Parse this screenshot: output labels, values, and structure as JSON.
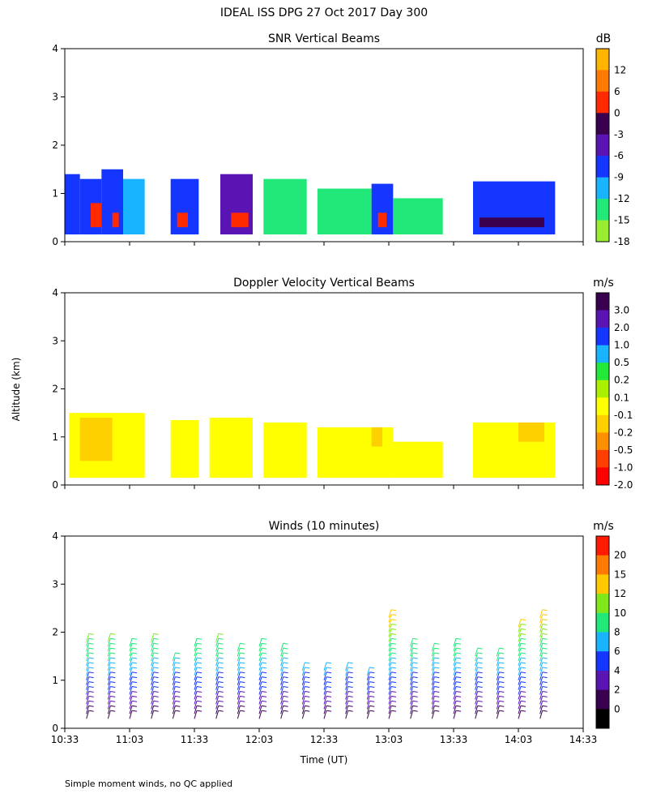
{
  "figure": {
    "title": "IDEAL ISS DPG  27 Oct 2017 Day 300",
    "shared_ylabel": "Altitude (km)",
    "shared_xlabel": "Time (UT)",
    "x_ticks": [
      "10:33",
      "11:03",
      "11:33",
      "12:03",
      "12:33",
      "13:03",
      "13:33",
      "14:03",
      "14:33"
    ],
    "y_ticks": [
      "0",
      "1",
      "2",
      "3",
      "4"
    ],
    "footnote": "Simple moment winds, no QC applied"
  },
  "chart_data": [
    {
      "type": "heatmap",
      "title": "SNR Vertical Beams",
      "ylim": [
        0,
        4
      ],
      "xlim": [
        "10:33",
        "14:33"
      ],
      "colorbar": {
        "unit": "dB",
        "labels": [
          "12",
          "6",
          "0",
          "-3",
          "-6",
          "-9",
          "-12",
          "-15",
          "-18"
        ],
        "colors": [
          "#ffb400",
          "#ff7a00",
          "#ff2a00",
          "#3a0050",
          "#5a14b4",
          "#1436ff",
          "#18b4ff",
          "#22e87a",
          "#9aee32"
        ]
      },
      "cells": [
        {
          "x0": "10:33",
          "x1": "10:40",
          "y0": 0.15,
          "y1": 1.4,
          "c": 5
        },
        {
          "x0": "10:40",
          "x1": "10:50",
          "y0": 0.15,
          "y1": 1.3,
          "c": 5
        },
        {
          "x0": "10:50",
          "x1": "11:00",
          "y0": 0.15,
          "y1": 1.5,
          "c": 5
        },
        {
          "x0": "11:00",
          "x1": "11:10",
          "y0": 0.15,
          "y1": 1.3,
          "c": 6
        },
        {
          "x0": "11:22",
          "x1": "11:35",
          "y0": 0.15,
          "y1": 1.3,
          "c": 5
        },
        {
          "x0": "11:45",
          "x1": "12:00",
          "y0": 0.15,
          "y1": 1.4,
          "c": 4
        },
        {
          "x0": "12:05",
          "x1": "12:25",
          "y0": 0.15,
          "y1": 1.3,
          "c": 7
        },
        {
          "x0": "12:30",
          "x1": "12:55",
          "y0": 0.15,
          "y1": 1.1,
          "c": 7
        },
        {
          "x0": "12:55",
          "x1": "13:05",
          "y0": 0.15,
          "y1": 1.2,
          "c": 5
        },
        {
          "x0": "13:05",
          "x1": "13:28",
          "y0": 0.15,
          "y1": 0.9,
          "c": 7
        },
        {
          "x0": "13:42",
          "x1": "14:20",
          "y0": 0.15,
          "y1": 1.25,
          "c": 5
        },
        {
          "x0": "10:45",
          "x1": "10:50",
          "y0": 0.3,
          "y1": 0.8,
          "c": 2
        },
        {
          "x0": "10:55",
          "x1": "10:58",
          "y0": 0.3,
          "y1": 0.6,
          "c": 2
        },
        {
          "x0": "11:25",
          "x1": "11:30",
          "y0": 0.3,
          "y1": 0.6,
          "c": 2
        },
        {
          "x0": "11:50",
          "x1": "11:58",
          "y0": 0.3,
          "y1": 0.6,
          "c": 2
        },
        {
          "x0": "12:58",
          "x1": "13:02",
          "y0": 0.3,
          "y1": 0.6,
          "c": 2
        },
        {
          "x0": "13:45",
          "x1": "14:15",
          "y0": 0.3,
          "y1": 0.5,
          "c": 3
        }
      ]
    },
    {
      "type": "heatmap",
      "title": "Doppler Velocity Vertical Beams",
      "ylim": [
        0,
        4
      ],
      "xlim": [
        "10:33",
        "14:33"
      ],
      "colorbar": {
        "unit": "m/s",
        "labels": [
          "3.0",
          "2.0",
          "1.0",
          "0.5",
          "0.2",
          "0.1",
          "-0.1",
          "-0.2",
          "-0.5",
          "-1.0",
          "-2.0"
        ],
        "colors": [
          "#3a0050",
          "#5a14b4",
          "#1436ff",
          "#18b4ff",
          "#22e83a",
          "#aaf000",
          "#ffff00",
          "#ffd000",
          "#ff9000",
          "#ff4000",
          "#ff0000"
        ]
      },
      "cells": [
        {
          "x0": "10:35",
          "x1": "11:10",
          "y0": 0.15,
          "y1": 1.5,
          "c": 6
        },
        {
          "x0": "10:40",
          "x1": "10:55",
          "y0": 0.5,
          "y1": 1.4,
          "c": 7
        },
        {
          "x0": "11:22",
          "x1": "11:35",
          "y0": 0.15,
          "y1": 1.35,
          "c": 6
        },
        {
          "x0": "11:40",
          "x1": "12:00",
          "y0": 0.15,
          "y1": 1.4,
          "c": 6
        },
        {
          "x0": "12:05",
          "x1": "12:25",
          "y0": 0.15,
          "y1": 1.3,
          "c": 6
        },
        {
          "x0": "12:30",
          "x1": "13:05",
          "y0": 0.15,
          "y1": 1.2,
          "c": 6
        },
        {
          "x0": "12:55",
          "x1": "13:00",
          "y0": 0.8,
          "y1": 1.2,
          "c": 7
        },
        {
          "x0": "13:05",
          "x1": "13:28",
          "y0": 0.15,
          "y1": 0.9,
          "c": 6
        },
        {
          "x0": "13:42",
          "x1": "14:20",
          "y0": 0.15,
          "y1": 1.3,
          "c": 6
        },
        {
          "x0": "14:03",
          "x1": "14:15",
          "y0": 0.9,
          "y1": 1.3,
          "c": 7
        }
      ]
    },
    {
      "type": "scatter",
      "title": "Winds (10 minutes)",
      "ylim": [
        0,
        4
      ],
      "xlim": [
        "10:33",
        "14:33"
      ],
      "colorbar": {
        "unit": "m/s",
        "labels": [
          "20",
          "15",
          "12",
          "10",
          "8",
          "6",
          "4",
          "2",
          "0"
        ],
        "colors": [
          "#ff1a00",
          "#ff7a00",
          "#ffc800",
          "#80e81a",
          "#22e87a",
          "#18b4ff",
          "#1436ff",
          "#5a14b4",
          "#3a0050",
          "#000000"
        ]
      },
      "profile_times": [
        "10:43",
        "10:53",
        "11:03",
        "11:13",
        "11:23",
        "11:33",
        "11:43",
        "11:53",
        "12:03",
        "12:13",
        "12:23",
        "12:33",
        "12:43",
        "12:53",
        "13:03",
        "13:13",
        "13:23",
        "13:33",
        "13:43",
        "13:53",
        "14:03",
        "14:13"
      ],
      "profile_tops": [
        1.9,
        1.9,
        1.8,
        1.9,
        1.5,
        1.8,
        1.9,
        1.7,
        1.8,
        1.7,
        1.3,
        1.3,
        1.3,
        1.2,
        2.4,
        1.8,
        1.7,
        1.8,
        1.6,
        1.6,
        2.2,
        2.4
      ]
    }
  ]
}
